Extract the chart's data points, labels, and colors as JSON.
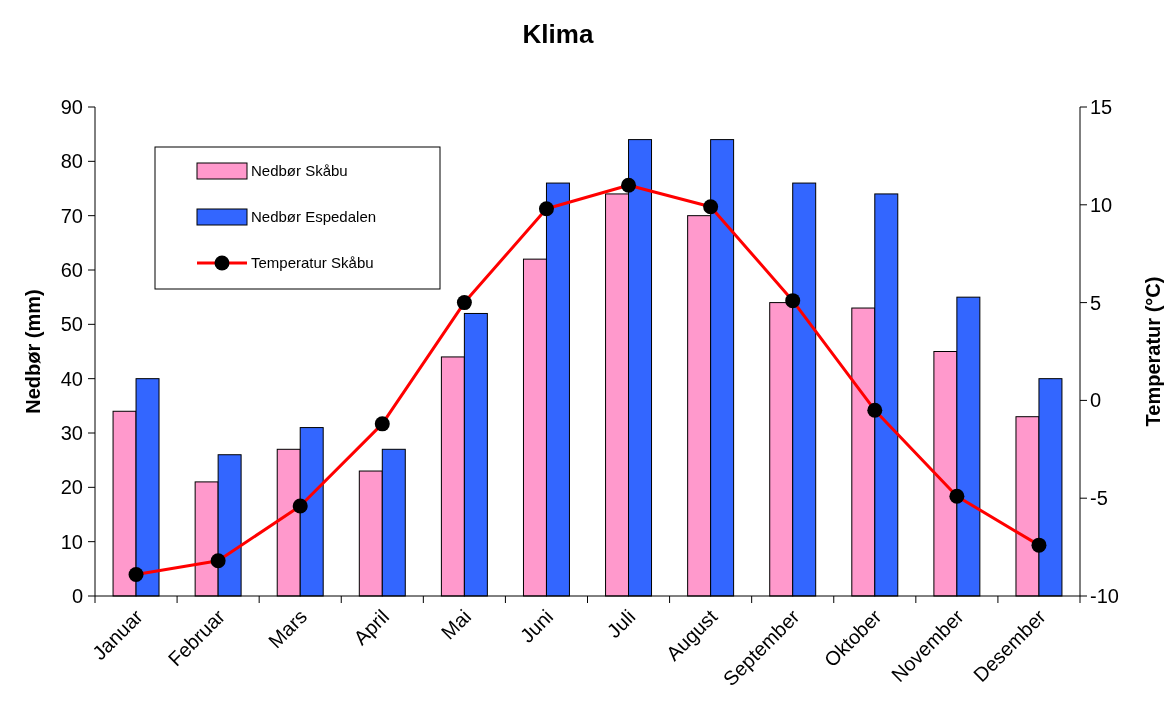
{
  "chart_data": {
    "type": "bar",
    "title": "Klima",
    "ylabel": "Nedbør (mm)",
    "y2label": "Temperatur (°C)",
    "categories": [
      "Januar",
      "Februar",
      "Mars",
      "April",
      "Mai",
      "Juni",
      "Juli",
      "August",
      "September",
      "Oktober",
      "November",
      "Desember"
    ],
    "series": [
      {
        "name": "Nedbør Skåbu",
        "color": "#ff99cc",
        "values": [
          34,
          21,
          27,
          23,
          44,
          62,
          74,
          70,
          54,
          53,
          45,
          33
        ]
      },
      {
        "name": "Nedbør Espedalen",
        "color": "#3366ff",
        "values": [
          40,
          26,
          31,
          27,
          52,
          76,
          84,
          84,
          76,
          74,
          55,
          40
        ]
      },
      {
        "name": "Temperatur Skåbu",
        "type": "line",
        "axis": "y2",
        "color": "#ff0000",
        "marker": "circle",
        "values": [
          -8.9,
          -8.2,
          -5.4,
          -1.2,
          5.0,
          9.8,
          11.0,
          9.9,
          5.1,
          -0.5,
          -4.9,
          -7.4
        ]
      }
    ],
    "ylim": [
      0,
      90
    ],
    "yticks": [
      0,
      10,
      20,
      30,
      40,
      50,
      60,
      70,
      80,
      90
    ],
    "y2lim": [
      -10,
      15
    ],
    "y2ticks": [
      -10,
      -5,
      0,
      5,
      10,
      15
    ],
    "grid": false,
    "legend": "top left"
  }
}
